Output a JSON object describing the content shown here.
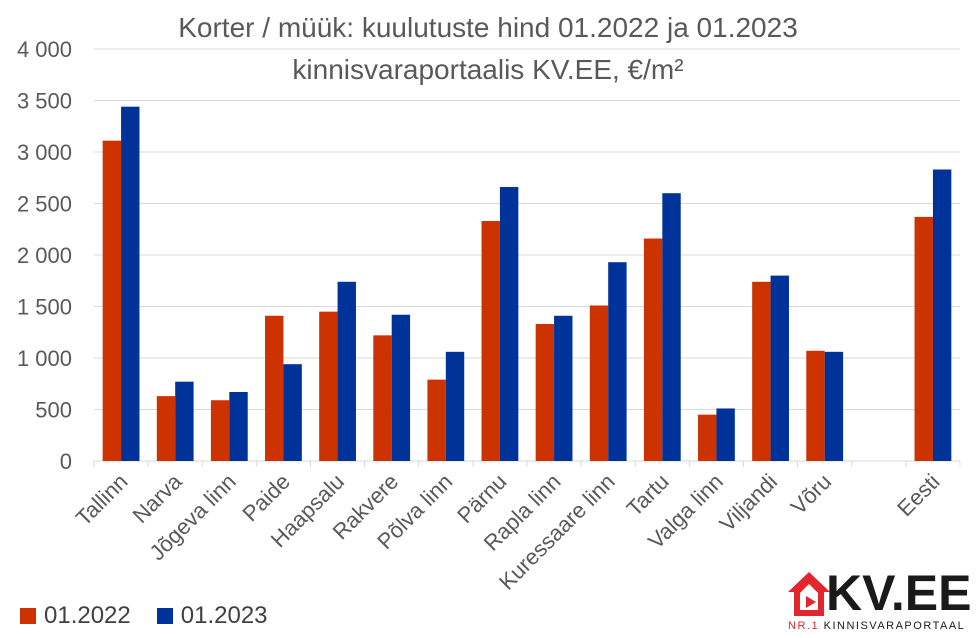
{
  "chart_data": {
    "type": "bar",
    "title": "Korter / müük: kuulutuste hind 01.2022 ja 01.2023",
    "subtitle": "kinnisvaraportaalis KV.EE, €/m²",
    "categories": [
      "Tallinn",
      "Narva",
      "Jõgeva linn",
      "Paide",
      "Haapsalu",
      "Rakvere",
      "Põlva linn",
      "Pärnu",
      "Rapla linn",
      "Kuressaare linn",
      "Tartu",
      "Valga linn",
      "Viljandi",
      "Võru",
      "",
      "Eesti"
    ],
    "series": [
      {
        "name": "01.2022",
        "color": "#cc3300",
        "values": [
          3110,
          630,
          590,
          1410,
          1450,
          1220,
          790,
          2330,
          1330,
          1510,
          2160,
          450,
          1740,
          1070,
          null,
          2370
        ]
      },
      {
        "name": "01.2023",
        "color": "#003399",
        "values": [
          3440,
          770,
          670,
          940,
          1740,
          1420,
          1060,
          2660,
          1410,
          1930,
          2600,
          510,
          1800,
          1060,
          null,
          2830
        ]
      }
    ],
    "ylim": [
      0,
      4000
    ],
    "yticks": [
      0,
      500,
      1000,
      1500,
      2000,
      2500,
      3000,
      3500,
      4000
    ],
    "ytick_labels": [
      "0",
      "500",
      "1 000",
      "1 500",
      "2 000",
      "2 500",
      "3 000",
      "3 500",
      "4 000"
    ],
    "grid": true,
    "legend_position": "bottom-left"
  },
  "logo": {
    "name": "KV.EE",
    "tagline_prefix": "NR.1",
    "tagline": "KINNISVARAPORTAAL",
    "accent": "#e3262d"
  }
}
